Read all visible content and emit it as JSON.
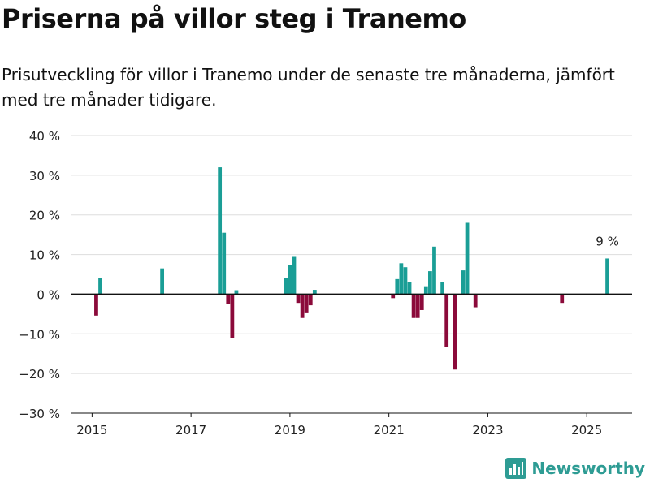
{
  "title": "Priserna på villor steg i Tranemo",
  "subtitle": "Prisutveckling för villor i Tranemo under de senaste tre månaderna, jämfört med tre månader tidigare.",
  "brand": {
    "name": "Newsworthy",
    "icon": "bar-chart-logo-icon"
  },
  "colors": {
    "positive": "#1a9e96",
    "negative": "#8b0a3a",
    "grid": "#dddddd",
    "axis": "#111111"
  },
  "chart_data": {
    "type": "bar",
    "ylim": [
      -30,
      40
    ],
    "yticks": [
      -30,
      -20,
      -10,
      0,
      10,
      20,
      30,
      40
    ],
    "ytick_labels": [
      "−30 %",
      "−20 %",
      "−10 %",
      "0 %",
      "10 %",
      "20 %",
      "30 %",
      "40 %"
    ],
    "xlim": [
      "2014-08",
      "2025-12"
    ],
    "xticks": [
      "2015-01",
      "2017-01",
      "2019-01",
      "2021-01",
      "2023-01",
      "2025-01"
    ],
    "xtick_labels": [
      "2015",
      "2017",
      "2019",
      "2021",
      "2023",
      "2025"
    ],
    "grid": true,
    "annotation": {
      "x": "2025-06",
      "text": "9 %"
    },
    "points": [
      {
        "x": "2015-02",
        "y": -5.4
      },
      {
        "x": "2015-03",
        "y": 4.0
      },
      {
        "x": "2016-06",
        "y": 6.5
      },
      {
        "x": "2017-08",
        "y": 32.0
      },
      {
        "x": "2017-09",
        "y": 15.5
      },
      {
        "x": "2017-10",
        "y": -2.5
      },
      {
        "x": "2017-11",
        "y": -11.0
      },
      {
        "x": "2017-12",
        "y": 1.0
      },
      {
        "x": "2018-12",
        "y": 4.0
      },
      {
        "x": "2019-01",
        "y": 7.3
      },
      {
        "x": "2019-02",
        "y": 9.4
      },
      {
        "x": "2019-03",
        "y": -2.2
      },
      {
        "x": "2019-04",
        "y": -6.0
      },
      {
        "x": "2019-05",
        "y": -4.8
      },
      {
        "x": "2019-06",
        "y": -2.8
      },
      {
        "x": "2019-07",
        "y": 1.1
      },
      {
        "x": "2021-02",
        "y": -1.0
      },
      {
        "x": "2021-03",
        "y": 3.8
      },
      {
        "x": "2021-04",
        "y": 7.8
      },
      {
        "x": "2021-05",
        "y": 6.8
      },
      {
        "x": "2021-06",
        "y": 3.0
      },
      {
        "x": "2021-07",
        "y": -6.0
      },
      {
        "x": "2021-08",
        "y": -6.0
      },
      {
        "x": "2021-09",
        "y": -4.0
      },
      {
        "x": "2021-10",
        "y": 2.0
      },
      {
        "x": "2021-11",
        "y": 5.8
      },
      {
        "x": "2021-12",
        "y": 12.0
      },
      {
        "x": "2022-02",
        "y": 3.0
      },
      {
        "x": "2022-03",
        "y": -13.3
      },
      {
        "x": "2022-05",
        "y": -19.0
      },
      {
        "x": "2022-07",
        "y": 6.0
      },
      {
        "x": "2022-08",
        "y": 18.0
      },
      {
        "x": "2022-10",
        "y": -3.3
      },
      {
        "x": "2024-07",
        "y": -2.2
      },
      {
        "x": "2025-06",
        "y": 9.0
      }
    ]
  }
}
